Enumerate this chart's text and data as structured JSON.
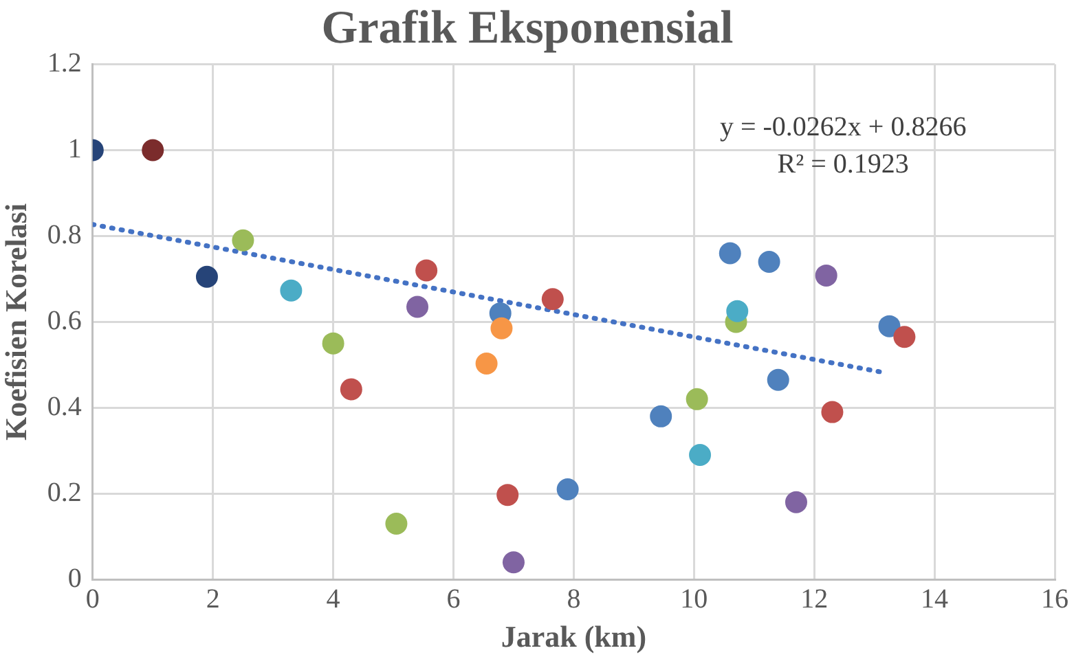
{
  "chart_data": {
    "type": "scatter",
    "title": "Grafik Eksponensial",
    "xlabel": "Jarak (km)",
    "ylabel": "Koefisien Korelasi",
    "xlim": [
      0,
      16
    ],
    "xticks": [
      0,
      2,
      4,
      6,
      8,
      10,
      12,
      14,
      16
    ],
    "ylim": [
      0,
      1.2
    ],
    "yticks": [
      0,
      0.2,
      0.4,
      0.6,
      0.8,
      1,
      1.2
    ],
    "grid": true,
    "marker": "circle",
    "annotations": [
      "y = -0.0262x + 0.8266",
      "R² = 0.1923"
    ],
    "series": [
      {
        "type": "scatter",
        "x": [
          0,
          1,
          1.9,
          2.5,
          3.3,
          4.0,
          4.3,
          5.05,
          5.4,
          5.55,
          6.55,
          6.78,
          6.8,
          6.9,
          7.0,
          7.65,
          7.9,
          9.45,
          10.05,
          10.1,
          10.6,
          10.7,
          10.72,
          11.25,
          11.4,
          11.7,
          12.2,
          12.3,
          13.25,
          13.5
        ],
        "values": [
          1.0,
          1.0,
          0.705,
          0.79,
          0.673,
          0.55,
          0.443,
          0.13,
          0.635,
          0.72,
          0.503,
          0.62,
          0.585,
          0.197,
          0.04,
          0.653,
          0.21,
          0.38,
          0.42,
          0.29,
          0.76,
          0.6,
          0.625,
          0.74,
          0.465,
          0.18,
          0.708,
          0.39,
          0.59,
          0.565
        ],
        "colors": [
          "#264478",
          "#7b2c2c",
          "#264478",
          "#9bbb59",
          "#4bacc6",
          "#9bbb59",
          "#c0504d",
          "#9bbb59",
          "#8064a2",
          "#c0504d",
          "#f79646",
          "#4f81bd",
          "#f79646",
          "#c0504d",
          "#8064a2",
          "#c0504d",
          "#4f81bd",
          "#4f81bd",
          "#9bbb59",
          "#4bacc6",
          "#4f81bd",
          "#9bbb59",
          "#4bacc6",
          "#4f81bd",
          "#4f81bd",
          "#8064a2",
          "#8064a2",
          "#c0504d",
          "#4f81bd",
          "#c0504d"
        ]
      },
      {
        "type": "line",
        "x": [
          0,
          13.2
        ],
        "values": [
          0.827,
          0.481
        ],
        "color": "#4472c4",
        "line_style": "dotted",
        "marker": "none"
      }
    ]
  }
}
